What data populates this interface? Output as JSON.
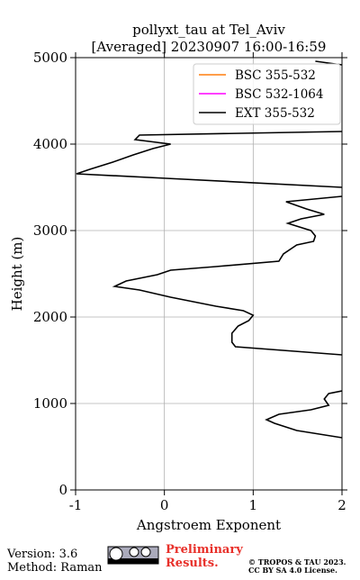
{
  "chart_data": {
    "type": "line",
    "title": [
      "pollyxt_tau at Tel_Aviv",
      "[Averaged] 20230907 16:00-16:59"
    ],
    "x_label": "Angstroem Exponent",
    "y_label": "Height (m)",
    "xlim": [
      -1,
      2
    ],
    "ylim": [
      0,
      5000
    ],
    "xticks": [
      -1,
      0,
      1,
      2
    ],
    "yticks": [
      0,
      1000,
      2000,
      3000,
      4000,
      5000
    ],
    "grid": true,
    "legend": "upper right",
    "series": [
      {
        "name": "BSC 355-532",
        "color": "#ff7f0e"
      },
      {
        "name": "BSC 532-1064",
        "color": "#ff00ff"
      },
      {
        "name": "EXT 355-532",
        "color": "#000000",
        "x": [
          2.0,
          1.49,
          1.24,
          1.15,
          1.29,
          1.65,
          1.85,
          1.8,
          1.85,
          2.0,
          null,
          2.0,
          0.8,
          0.76,
          0.76,
          0.83,
          0.95,
          1.0,
          0.89,
          0.58,
          0.07,
          -0.28,
          -0.56,
          -0.43,
          -0.08,
          0.07,
          0.58,
          1.29,
          1.34,
          1.49,
          1.68,
          1.7,
          1.65,
          1.39,
          1.54,
          1.8,
          1.6,
          1.37,
          2.0,
          null,
          2.0,
          0.02,
          -0.99,
          -0.84,
          -0.58,
          -0.35,
          -0.13,
          0.07,
          -0.33,
          -0.28,
          2.0,
          null,
          2.0,
          1.7
        ],
        "y": [
          604,
          688,
          771,
          813,
          875,
          927,
          979,
          1052,
          1115,
          1146,
          null,
          1563,
          1656,
          1708,
          1813,
          1896,
          1958,
          2021,
          2073,
          2125,
          2229,
          2313,
          2354,
          2417,
          2490,
          2542,
          2583,
          2646,
          2729,
          2833,
          2875,
          2938,
          3000,
          3083,
          3135,
          3188,
          3250,
          3333,
          3396,
          null,
          3500,
          3604,
          3656,
          3708,
          3792,
          3875,
          3948,
          4000,
          4052,
          4104,
          4146,
          null,
          4917,
          4958
        ]
      }
    ]
  },
  "footer": {
    "version": "Version: 3.6",
    "method": "Method: Raman",
    "preliminary": [
      "Preliminary",
      "Results."
    ],
    "license": [
      "© TROPOS & TAU 2023.",
      "CC BY SA 4.0 License."
    ]
  }
}
